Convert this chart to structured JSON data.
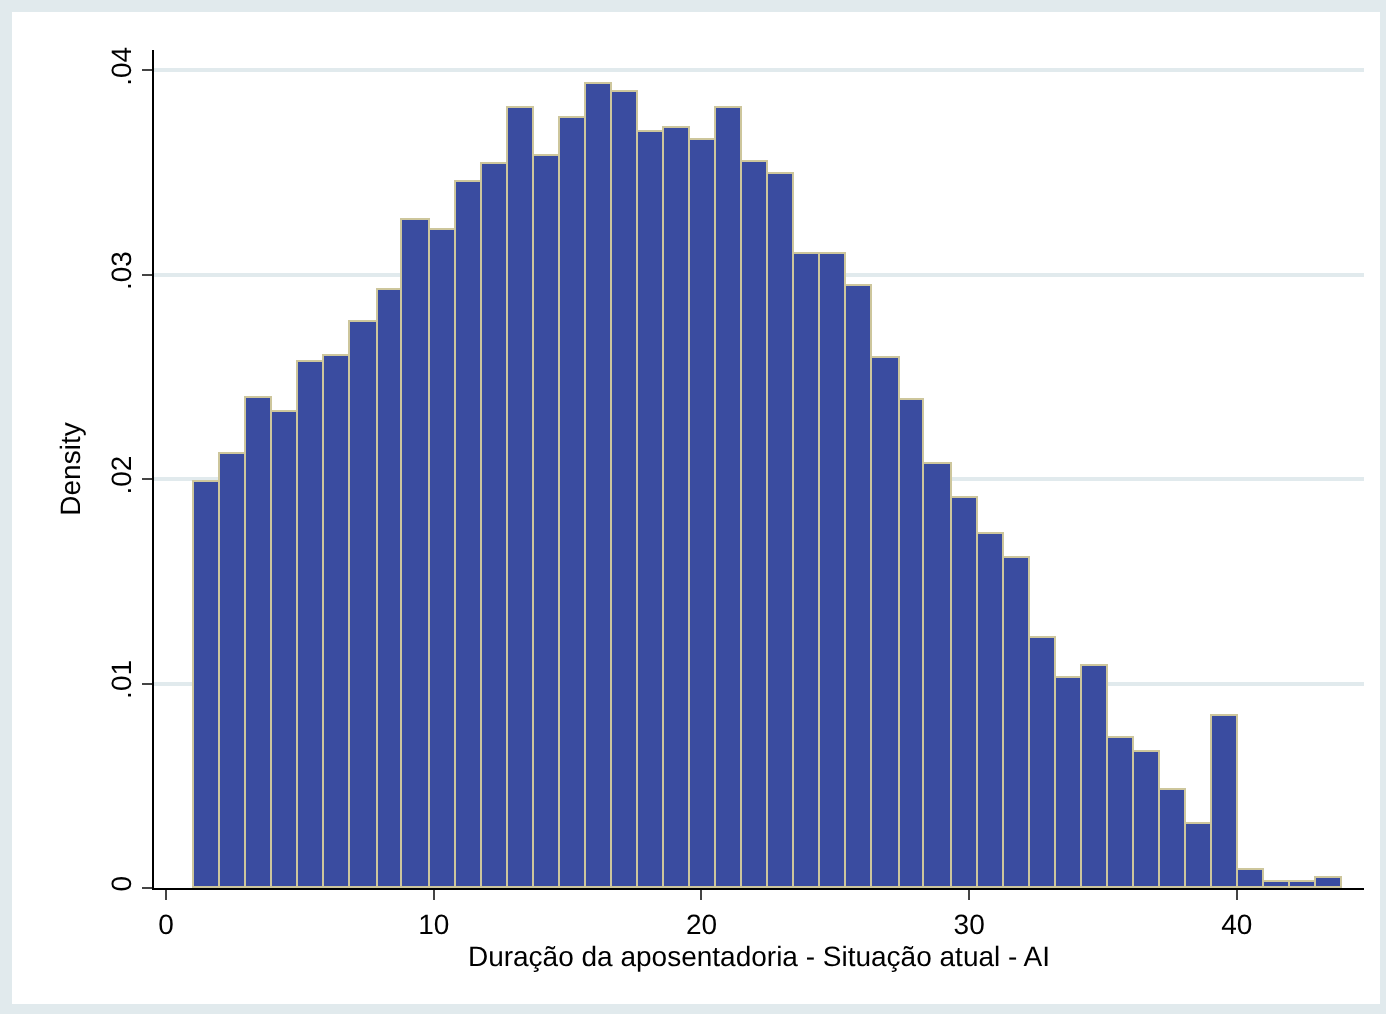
{
  "chart_data": {
    "type": "histogram",
    "xlabel": "Duração da aposentadoria - Situação atual - AI",
    "ylabel": "Density",
    "bins": [
      1.05,
      2.03,
      3,
      3.98,
      4.95,
      5.93,
      6.9,
      7.88,
      8.85,
      9.83,
      10.8,
      11.78,
      12.75,
      13.73,
      14.7,
      15.68,
      16.65,
      17.63,
      18.6,
      19.58,
      20.55,
      21.53,
      22.5,
      23.48,
      24.45,
      25.43,
      26.4,
      27.38,
      28.35,
      29.33,
      30.3,
      31.28,
      32.25,
      33.23,
      34.2,
      35.18,
      36.15,
      37.13,
      38.1,
      39.08,
      40.05,
      41.03,
      42,
      42.98,
      43.95
    ],
    "values": [
      0.0199,
      0.0212,
      0.024,
      0.0233,
      0.0257,
      0.026,
      0.0277,
      0.0293,
      0.0327,
      0.0322,
      0.0345,
      0.0354,
      0.0382,
      0.0358,
      0.0377,
      0.0393,
      0.0389,
      0.037,
      0.0372,
      0.0366,
      0.0382,
      0.0355,
      0.0349,
      0.031,
      0.031,
      0.0295,
      0.0259,
      0.0239,
      0.0207,
      0.0191,
      0.0173,
      0.0161,
      0.0122,
      0.0103,
      0.0109,
      0.0073,
      0.0067,
      0.0048,
      0.0031,
      0.0084,
      0.0009,
      0.0003,
      0.0003,
      0.0005
    ],
    "color": "#3a4ca0",
    "xlim": [
      -0.45,
      44.75
    ],
    "xticks": [
      0,
      10,
      20,
      30,
      40
    ],
    "ylim": [
      0,
      0.041
    ],
    "yticks": [
      {
        "value": 0,
        "label": "0"
      },
      {
        "value": 0.01,
        "label": ".01"
      },
      {
        "value": 0.02,
        "label": ".02"
      },
      {
        "value": 0.03,
        "label": ".03"
      },
      {
        "value": 0.04,
        "label": ".04"
      }
    ],
    "grid": "y"
  }
}
